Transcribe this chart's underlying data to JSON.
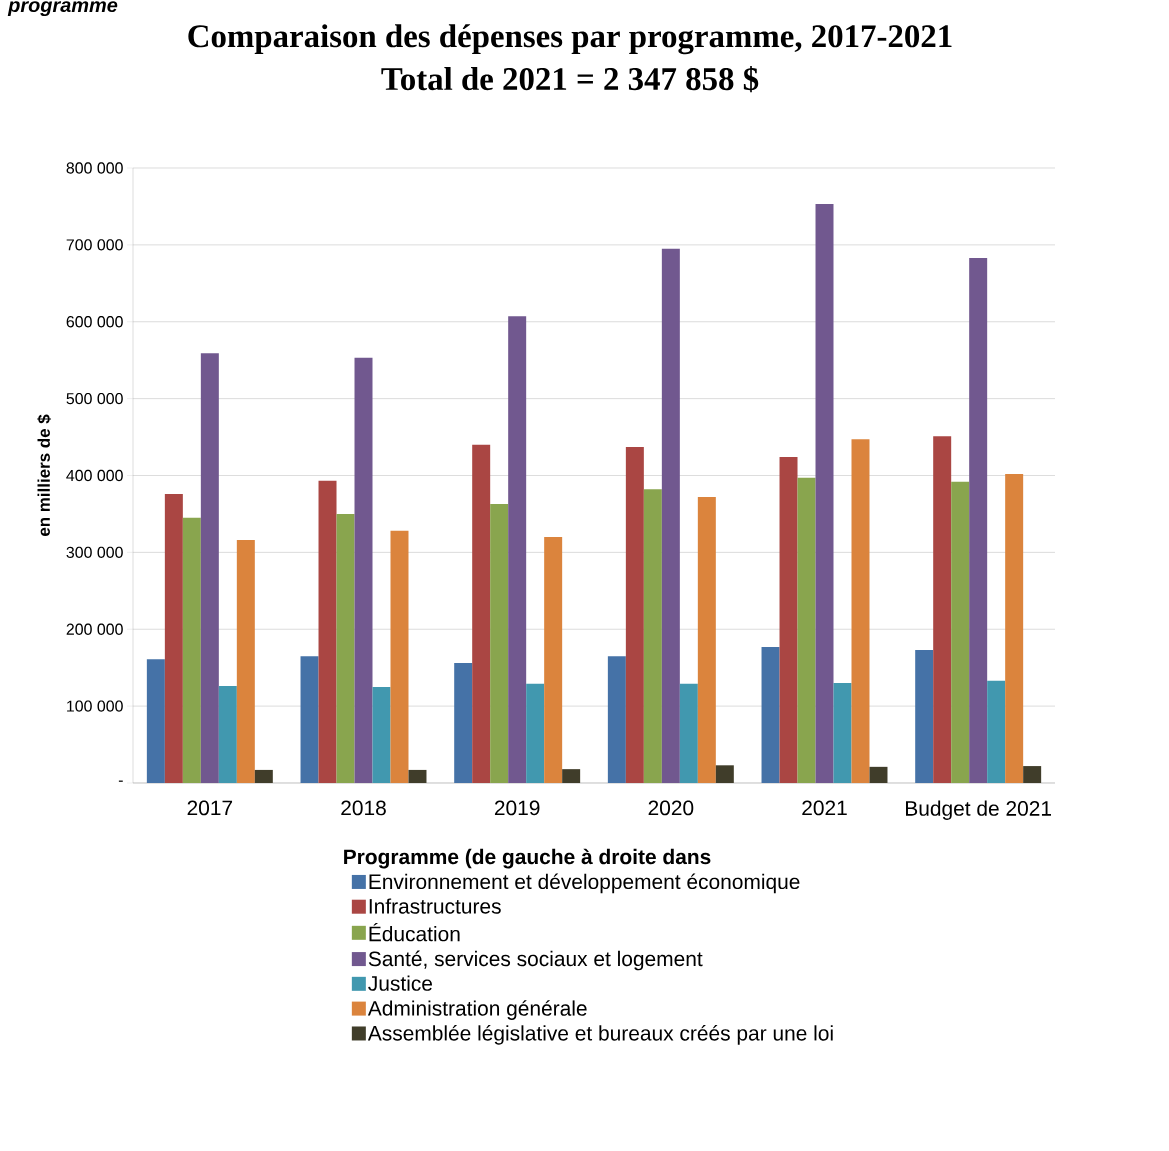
{
  "chart_data": {
    "type": "bar",
    "title": "Comparaison des dépenses par programme, 2017-2021",
    "subtitle": "Total de 2021 = 2 347 858 $",
    "ylabel": "en milliers de $",
    "legend_title": "Programme (de gauche à droite dans",
    "annotations": [
      "programme"
    ],
    "categories": [
      "2017",
      "2018",
      "2019",
      "2020",
      "2021",
      "Budget de 2021"
    ],
    "series": [
      {
        "name": "Environnement et développement économique",
        "color": "#4572a7",
        "values": [
          161000,
          165000,
          156000,
          165000,
          177000,
          173000
        ]
      },
      {
        "name": "Infrastructures",
        "color": "#aa4643",
        "values": [
          376000,
          393000,
          440000,
          437000,
          424000,
          451000
        ]
      },
      {
        "name": "Éducation",
        "color": "#89a54e",
        "values": [
          345000,
          350000,
          363000,
          382000,
          397000,
          392000
        ]
      },
      {
        "name": "Santé, services sociaux et logement",
        "color": "#71588f",
        "values": [
          559000,
          553000,
          607000,
          695000,
          753000,
          683000
        ]
      },
      {
        "name": "Justice",
        "color": "#4198af",
        "values": [
          126000,
          125000,
          129000,
          129000,
          130000,
          133000
        ]
      },
      {
        "name": "Administration générale",
        "color": "#db843d",
        "values": [
          316000,
          328000,
          320000,
          372000,
          447000,
          402000
        ]
      },
      {
        "name": "Assemblée législative et bureaux créés par une loi",
        "color": "#403d2a",
        "values": [
          17000,
          17000,
          18000,
          23000,
          21000,
          22000
        ]
      }
    ],
    "ylim": [
      0,
      800000
    ],
    "yticks": [
      {
        "value": 0,
        "label": "-"
      },
      {
        "value": 100000,
        "label": "100 000"
      },
      {
        "value": 200000,
        "label": "200 000"
      },
      {
        "value": 300000,
        "label": "300 000"
      },
      {
        "value": 400000,
        "label": "400 000"
      },
      {
        "value": 500000,
        "label": "500 000"
      },
      {
        "value": 600000,
        "label": "600 000"
      },
      {
        "value": 700000,
        "label": "700 000"
      },
      {
        "value": 800000,
        "label": "800 000"
      }
    ],
    "grid": "y",
    "legend": "bottom"
  }
}
